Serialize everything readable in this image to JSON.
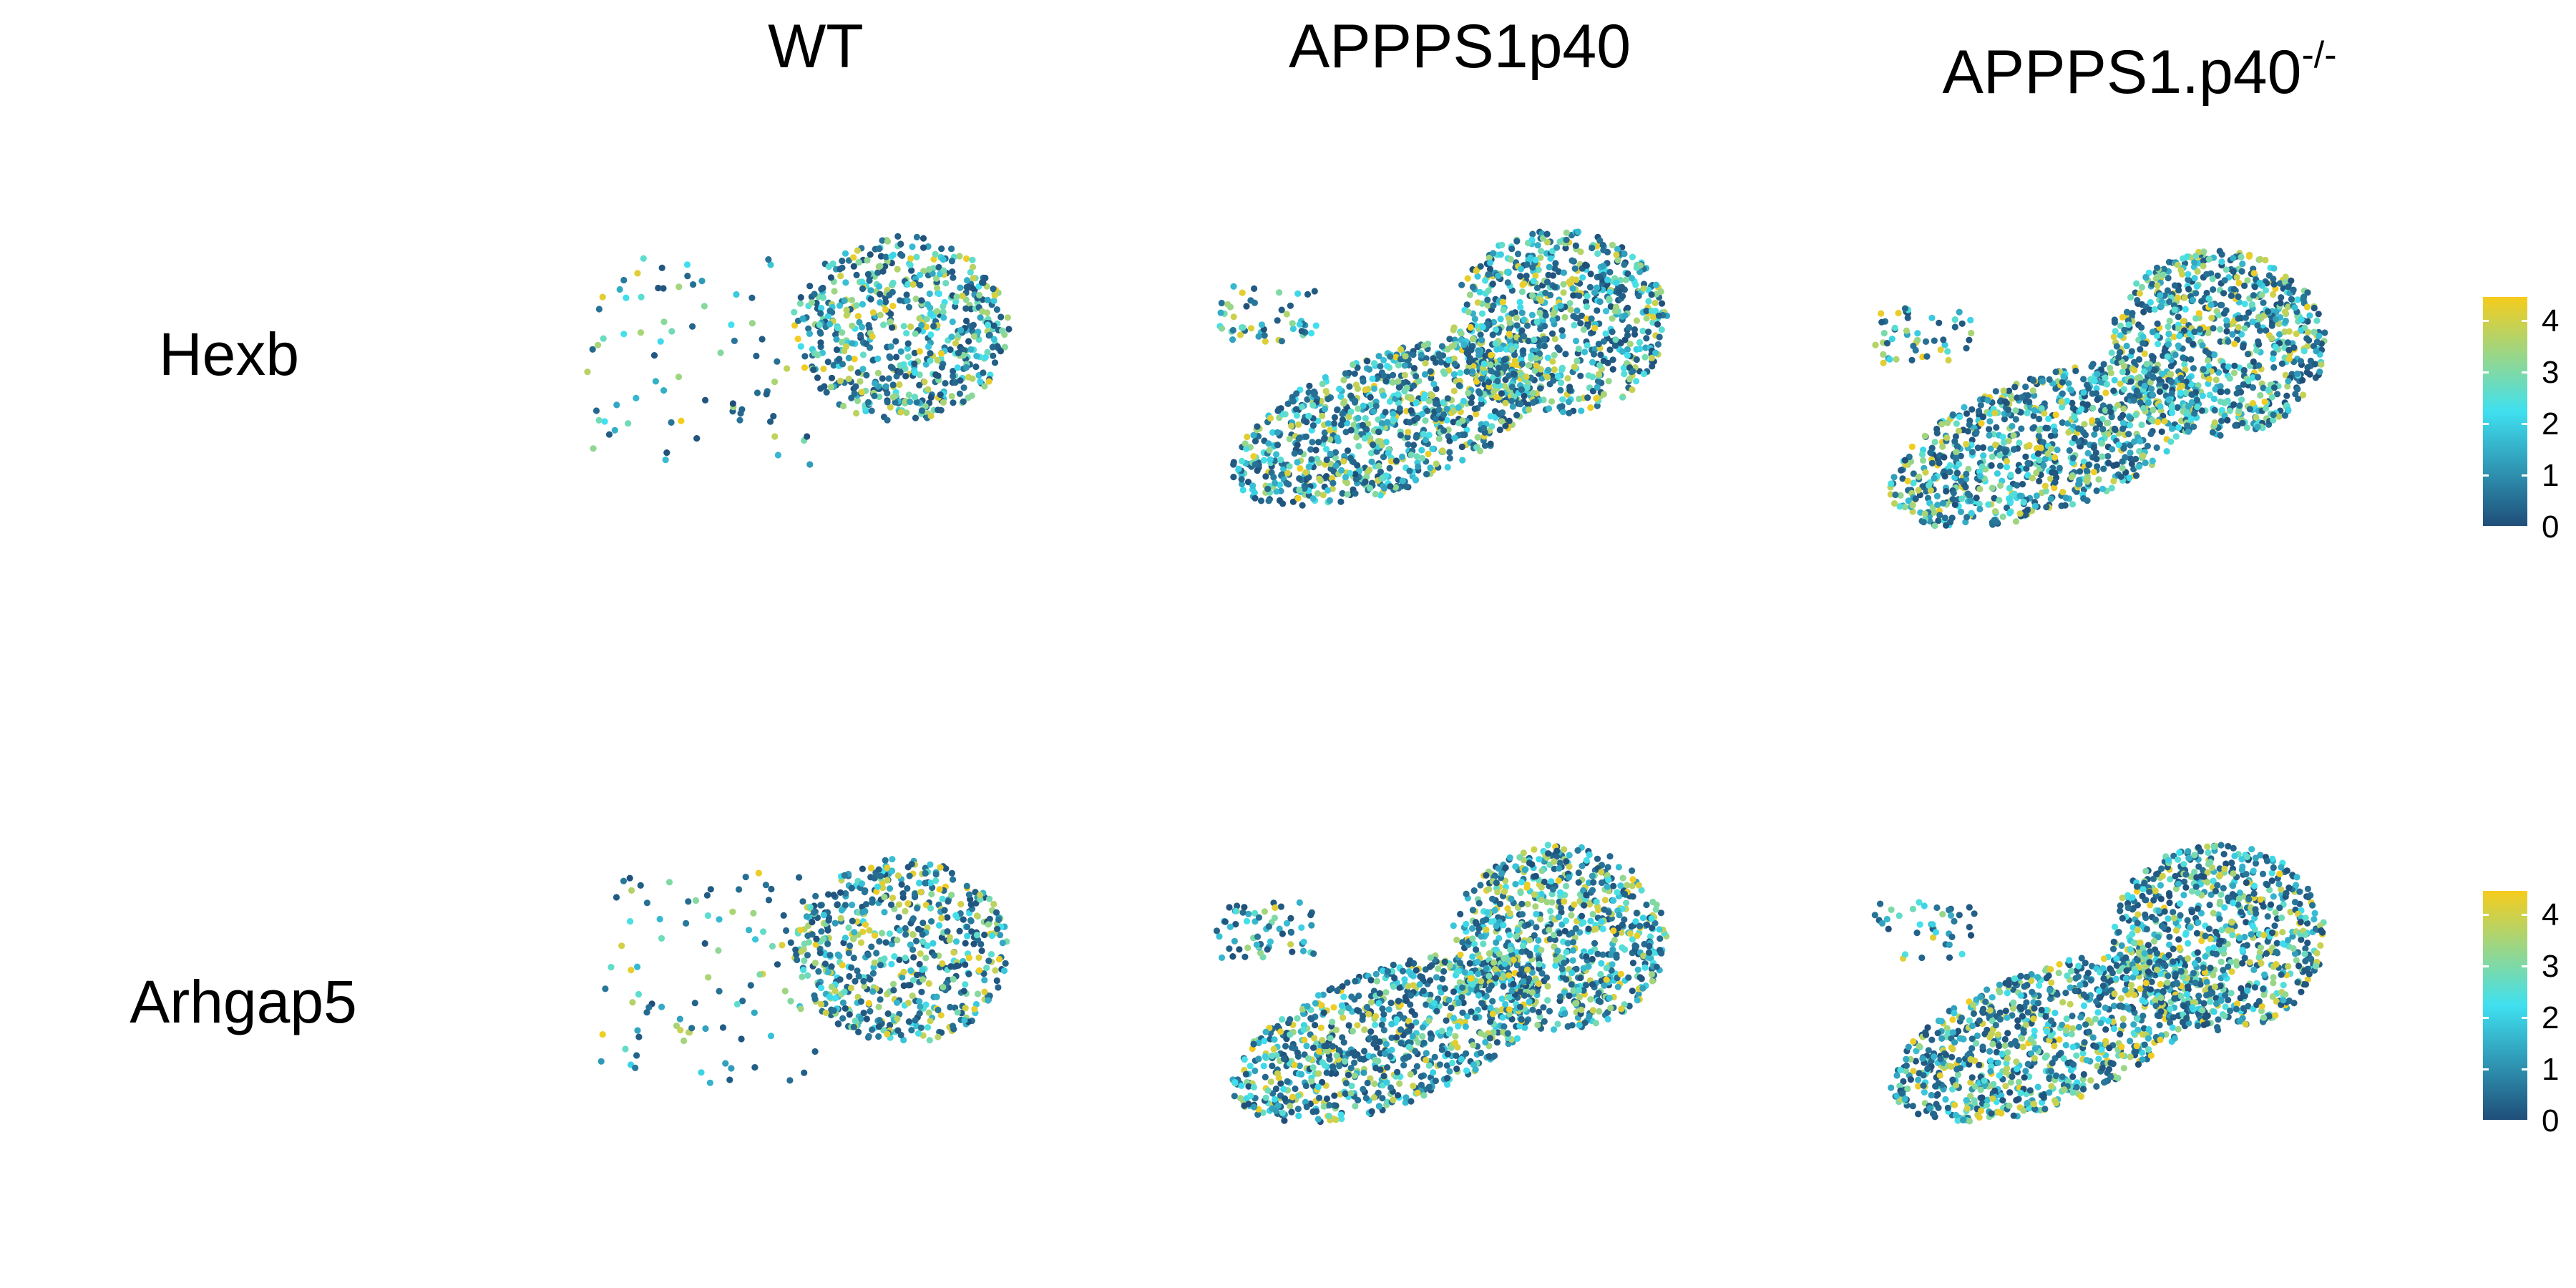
{
  "columns": [
    {
      "base": "WT",
      "sup": ""
    },
    {
      "base": "APPPS1p40",
      "sup": ""
    },
    {
      "base": "APPPS1.p40",
      "sup": "-/-"
    }
  ],
  "rows": [
    "Hexb",
    "Arhgap5"
  ],
  "colorbar": {
    "ticks": [
      "4",
      "3",
      "2",
      "1",
      "0"
    ],
    "min": 0,
    "max": 4,
    "stops": [
      "#1f4e79",
      "#3fe0f0",
      "#f6cc1c"
    ]
  },
  "chart_data": {
    "type": "scatter",
    "description_kind": "feature plot grid (gene expression on embedding)",
    "panel_rows": [
      "Hexb",
      "Arhgap5"
    ],
    "panel_columns": [
      "WT",
      "APPPS1p40",
      "APPPS1.p40-/-"
    ],
    "color_scale": {
      "min": 0,
      "max": 4,
      "low": "#1f4e79",
      "mid": "#3fe0f0",
      "high": "#f6cc1c"
    },
    "legend_placement": "right",
    "grid": false,
    "panels": [
      {
        "row": "Hexb",
        "column": "WT",
        "shape": "wt"
      },
      {
        "row": "Hexb",
        "column": "APPPS1p40",
        "shape": "elongated"
      },
      {
        "row": "Hexb",
        "column": "APPPS1.p40-/-",
        "shape": "elongated"
      },
      {
        "row": "Arhgap5",
        "column": "WT",
        "shape": "wt"
      },
      {
        "row": "Arhgap5",
        "column": "APPPS1p40",
        "shape": "elongated"
      },
      {
        "row": "Arhgap5",
        "column": "APPPS1.p40-/-",
        "shape": "elongated"
      }
    ]
  }
}
